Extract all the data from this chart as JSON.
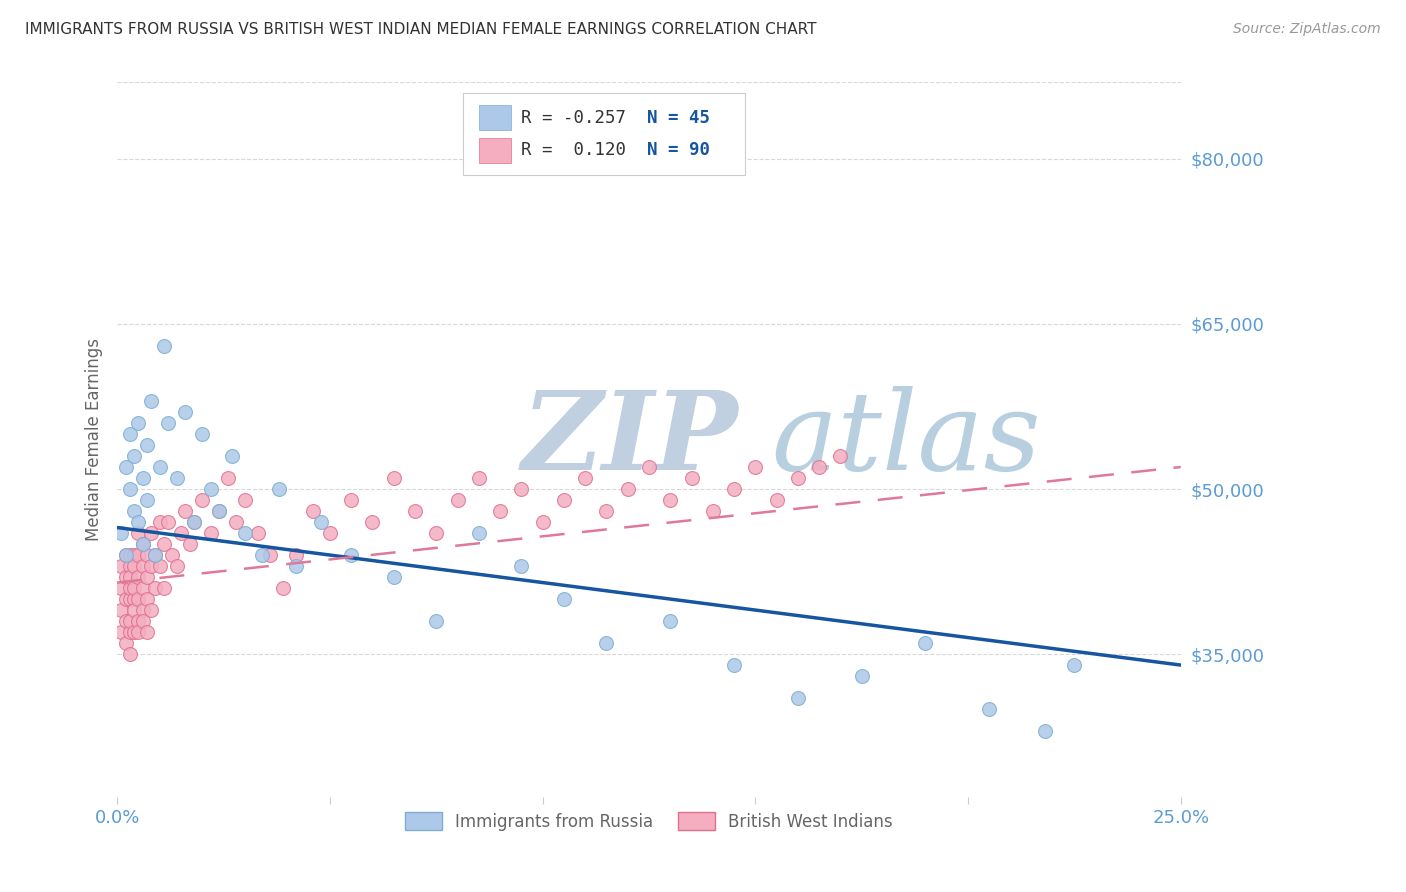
{
  "title": "IMMIGRANTS FROM RUSSIA VS BRITISH WEST INDIAN MEDIAN FEMALE EARNINGS CORRELATION CHART",
  "source": "Source: ZipAtlas.com",
  "ylabel": "Median Female Earnings",
  "xlim": [
    0.0,
    0.25
  ],
  "ylim": [
    22000,
    87000
  ],
  "ytick_positions": [
    35000,
    50000,
    65000,
    80000
  ],
  "ytick_labels": [
    "$35,000",
    "$50,000",
    "$65,000",
    "$80,000"
  ],
  "background_color": "#ffffff",
  "grid_color": "#d8d8d8",
  "title_color": "#333333",
  "axis_label_color": "#5b9bd5",
  "watermark_zip": "ZIP",
  "watermark_atlas": "atlas",
  "watermark_color_zip": "#c8d8e8",
  "watermark_color_atlas": "#b8cfe8",
  "series1_name": "Immigrants from Russia",
  "series1_color": "#adc8e8",
  "series1_edge_color": "#7aaed4",
  "series1_R": "-0.257",
  "series1_N": "45",
  "series1_line_color": "#1655a0",
  "series2_name": "British West Indians",
  "series2_color": "#f4aec0",
  "series2_edge_color": "#e07090",
  "series2_R": "0.120",
  "series2_N": "90",
  "series2_line_color": "#e07898",
  "legend_R_color": "#333333",
  "legend_N_color": "#1655a0",
  "russia_x": [
    0.001,
    0.002,
    0.002,
    0.003,
    0.003,
    0.004,
    0.004,
    0.005,
    0.005,
    0.006,
    0.006,
    0.007,
    0.007,
    0.008,
    0.009,
    0.01,
    0.011,
    0.012,
    0.014,
    0.016,
    0.018,
    0.02,
    0.022,
    0.024,
    0.027,
    0.03,
    0.034,
    0.038,
    0.042,
    0.048,
    0.055,
    0.065,
    0.075,
    0.085,
    0.095,
    0.105,
    0.115,
    0.13,
    0.145,
    0.16,
    0.175,
    0.19,
    0.205,
    0.218,
    0.225
  ],
  "russia_y": [
    46000,
    52000,
    44000,
    50000,
    55000,
    48000,
    53000,
    47000,
    56000,
    51000,
    45000,
    54000,
    49000,
    58000,
    44000,
    52000,
    63000,
    56000,
    51000,
    57000,
    47000,
    55000,
    50000,
    48000,
    53000,
    46000,
    44000,
    50000,
    43000,
    47000,
    44000,
    42000,
    38000,
    46000,
    43000,
    40000,
    36000,
    38000,
    34000,
    31000,
    33000,
    36000,
    30000,
    28000,
    34000
  ],
  "bwi_x": [
    0.001,
    0.001,
    0.001,
    0.001,
    0.002,
    0.002,
    0.002,
    0.002,
    0.002,
    0.003,
    0.003,
    0.003,
    0.003,
    0.003,
    0.003,
    0.003,
    0.003,
    0.004,
    0.004,
    0.004,
    0.004,
    0.004,
    0.004,
    0.005,
    0.005,
    0.005,
    0.005,
    0.005,
    0.005,
    0.006,
    0.006,
    0.006,
    0.006,
    0.006,
    0.007,
    0.007,
    0.007,
    0.007,
    0.008,
    0.008,
    0.008,
    0.009,
    0.009,
    0.01,
    0.01,
    0.011,
    0.011,
    0.012,
    0.013,
    0.014,
    0.015,
    0.016,
    0.017,
    0.018,
    0.02,
    0.022,
    0.024,
    0.026,
    0.028,
    0.03,
    0.033,
    0.036,
    0.039,
    0.042,
    0.046,
    0.05,
    0.055,
    0.06,
    0.065,
    0.07,
    0.075,
    0.08,
    0.085,
    0.09,
    0.095,
    0.1,
    0.105,
    0.11,
    0.115,
    0.12,
    0.125,
    0.13,
    0.135,
    0.14,
    0.145,
    0.15,
    0.155,
    0.16,
    0.165,
    0.17
  ],
  "bwi_y": [
    41000,
    37000,
    43000,
    39000,
    42000,
    38000,
    44000,
    40000,
    36000,
    43000,
    40000,
    37000,
    44000,
    41000,
    38000,
    35000,
    42000,
    40000,
    44000,
    37000,
    43000,
    39000,
    41000,
    42000,
    38000,
    44000,
    40000,
    46000,
    37000,
    43000,
    39000,
    45000,
    41000,
    38000,
    44000,
    40000,
    42000,
    37000,
    46000,
    43000,
    39000,
    44000,
    41000,
    47000,
    43000,
    45000,
    41000,
    47000,
    44000,
    43000,
    46000,
    48000,
    45000,
    47000,
    49000,
    46000,
    48000,
    51000,
    47000,
    49000,
    46000,
    44000,
    41000,
    44000,
    48000,
    46000,
    49000,
    47000,
    51000,
    48000,
    46000,
    49000,
    51000,
    48000,
    50000,
    47000,
    49000,
    51000,
    48000,
    50000,
    52000,
    49000,
    51000,
    48000,
    50000,
    52000,
    49000,
    51000,
    52000,
    53000
  ]
}
